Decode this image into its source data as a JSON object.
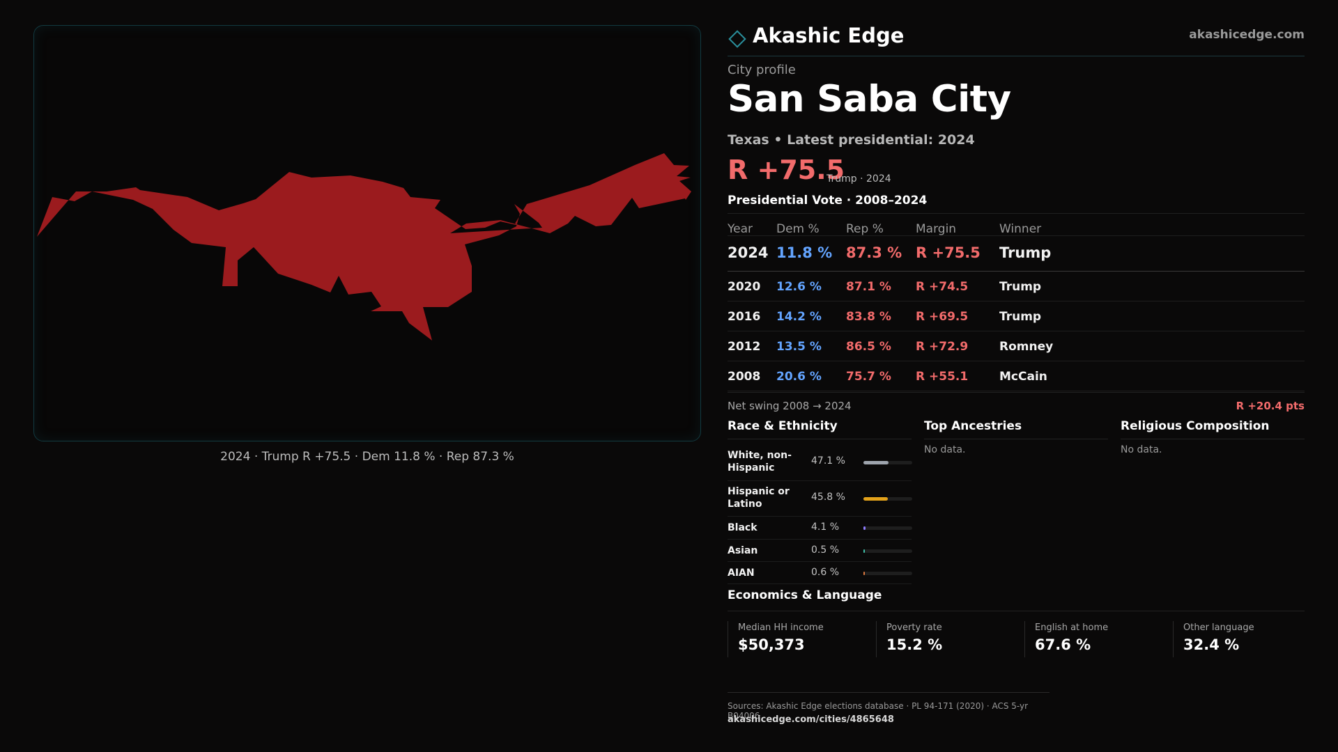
{
  "brand": {
    "name": "Akashic Edge",
    "url": "akashicedge.com",
    "logo_icon": "diamond-outline-icon"
  },
  "profile": {
    "kicker": "City profile",
    "city": "San Saba City",
    "subline": "Texas • Latest presidential: 2024",
    "headline_margin": "R +75.5",
    "headline_note": "Trump · 2024"
  },
  "map": {
    "caption": "2024 · Trump R +75.5 · Dem 11.8 % · Rep 87.3 %",
    "fill_color": "#9b1b1e"
  },
  "vote": {
    "title": "Presidential Vote · 2008–2024",
    "headers": {
      "year": "Year",
      "dem": "Dem %",
      "rep": "Rep %",
      "margin": "Margin",
      "winner": "Winner"
    },
    "rows": [
      {
        "year": "2024",
        "dem": "11.8 %",
        "rep": "87.3 %",
        "margin": "R +75.5",
        "winner": "Trump"
      },
      {
        "year": "2020",
        "dem": "12.6 %",
        "rep": "87.1 %",
        "margin": "R +74.5",
        "winner": "Trump"
      },
      {
        "year": "2016",
        "dem": "14.2 %",
        "rep": "83.8 %",
        "margin": "R +69.5",
        "winner": "Trump"
      },
      {
        "year": "2012",
        "dem": "13.5 %",
        "rep": "86.5 %",
        "margin": "R +72.9",
        "winner": "Romney"
      },
      {
        "year": "2008",
        "dem": "20.6 %",
        "rep": "75.7 %",
        "margin": "R +55.1",
        "winner": "McCain"
      }
    ],
    "swing_label": "Net swing 2008 → 2024",
    "swing_value": "R +20.4 pts"
  },
  "race": {
    "title": "Race & Ethnicity",
    "items": [
      {
        "label": "White, non-Hispanic",
        "pct": "47.1 %",
        "fraction": 0.471,
        "color": "#9ea4ad"
      },
      {
        "label": "Hispanic or Latino",
        "pct": "45.8 %",
        "fraction": 0.458,
        "color": "#e3a21a"
      },
      {
        "label": "Black",
        "pct": "4.1 %",
        "fraction": 0.041,
        "color": "#8f7dff"
      },
      {
        "label": "Asian",
        "pct": "0.5 %",
        "fraction": 0.005,
        "color": "#3fc1a8"
      },
      {
        "label": "AIAN",
        "pct": "0.6 %",
        "fraction": 0.006,
        "color": "#e07a3f"
      }
    ]
  },
  "ancestries": {
    "title": "Top Ancestries",
    "empty": "No data."
  },
  "religion": {
    "title": "Religious Composition",
    "empty": "No data."
  },
  "economics": {
    "title": "Economics & Language",
    "cells": [
      {
        "label": "Median HH income",
        "value": "$50,373"
      },
      {
        "label": "Poverty rate",
        "value": "15.2 %"
      },
      {
        "label": "English at home",
        "value": "67.6 %"
      },
      {
        "label": "Other language",
        "value": "32.4 %"
      }
    ]
  },
  "sources": {
    "text": "Sources: Akashic Edge elections database · PL 94-171 (2020) · ACS 5-yr B04006",
    "url": "akashicedge.com/cities/4865648"
  }
}
